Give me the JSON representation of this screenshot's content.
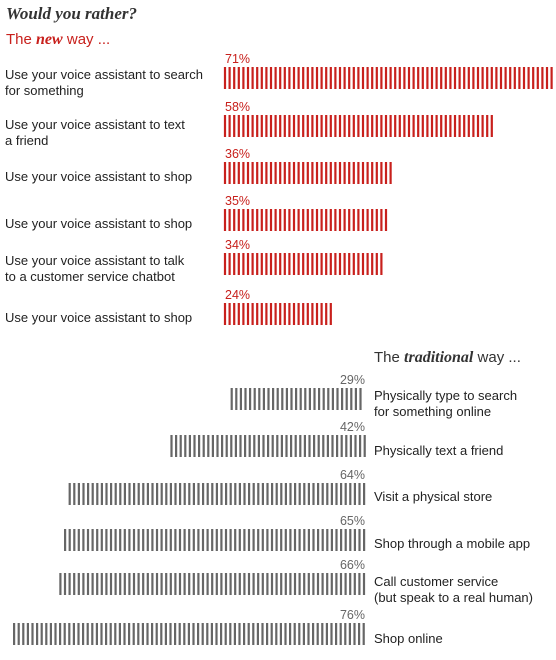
{
  "title": "Would you rather?",
  "new_heading": {
    "prefix": "The ",
    "emph": "new",
    "suffix": " way ..."
  },
  "trad_heading": {
    "prefix": "The ",
    "emph": "traditional",
    "suffix": " way ..."
  },
  "colors": {
    "new": "#c8201c",
    "traditional": "#666666"
  },
  "chart_data": [
    {
      "type": "bar",
      "orientation": "horizontal",
      "categories": [
        "Use your voice assistant to search for something",
        "Use your voice assistant to text a friend",
        "Use your voice assistant to shop",
        "Use your voice assistant to shop",
        "Use your voice assistant to talk to a customer service chatbot",
        "Use your voice assistant to shop"
      ],
      "values": [
        71,
        58,
        36,
        35,
        34,
        24
      ],
      "labels": [
        "71%",
        "58%",
        "36%",
        "35%",
        "34%",
        "24%"
      ],
      "unit": "%"
    },
    {
      "type": "bar",
      "orientation": "horizontal",
      "categories": [
        "Physically type to search for something online",
        "Physically text a friend",
        "Visit a physical store",
        "Shop through a mobile app",
        "Call customer service (but speak to a real human)",
        "Shop online"
      ],
      "values": [
        29,
        42,
        64,
        65,
        66,
        76
      ],
      "labels": [
        "29%",
        "42%",
        "64%",
        "65%",
        "66%",
        "76%"
      ],
      "unit": "%"
    }
  ],
  "new_rows": [
    {
      "line1": "Use your voice assistant to search",
      "line2": "for something"
    },
    {
      "line1": "Use your voice assistant to text",
      "line2": "a friend"
    },
    {
      "line1": "Use your voice assistant to shop",
      "line2": ""
    },
    {
      "line1": "Use your voice assistant to shop",
      "line2": ""
    },
    {
      "line1": "Use your voice assistant to talk",
      "line2": "to a customer service chatbot"
    },
    {
      "line1": "Use your voice assistant to shop",
      "line2": ""
    }
  ],
  "trad_rows": [
    {
      "line1": "Physically type to search",
      "line2": "for something online"
    },
    {
      "line1": "Physically text a friend",
      "line2": ""
    },
    {
      "line1": "Visit a physical store",
      "line2": ""
    },
    {
      "line1": "Shop through a mobile app",
      "line2": ""
    },
    {
      "line1": "Call customer service",
      "line2": "(but speak to a real human)"
    },
    {
      "line1": "Shop online",
      "line2": ""
    }
  ]
}
